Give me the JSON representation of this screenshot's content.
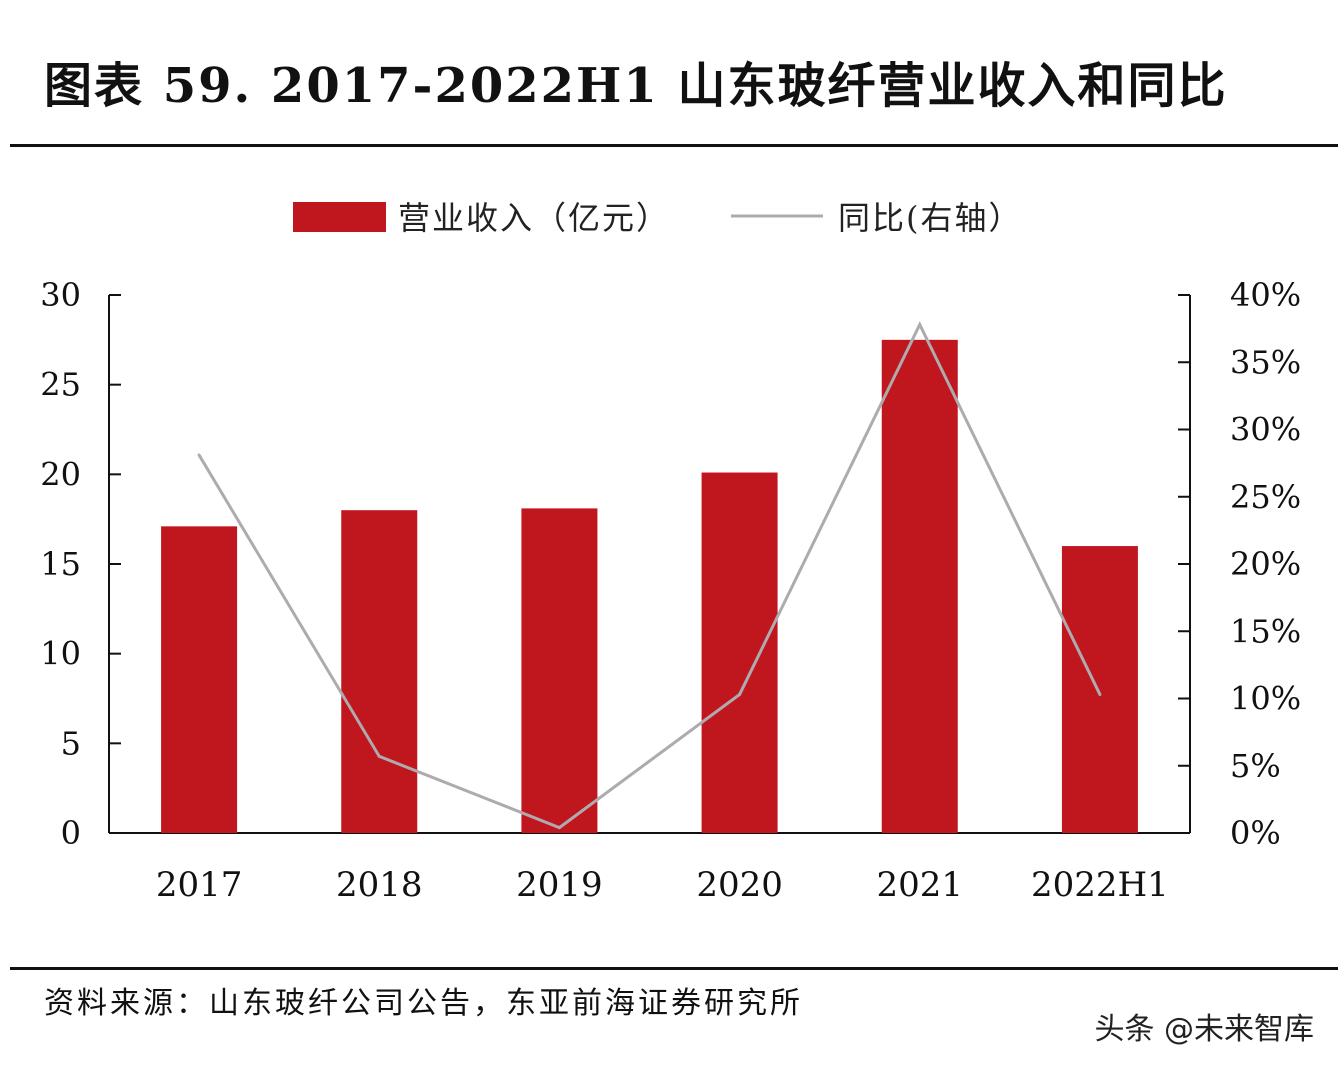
{
  "title": "图表 59. 2017-2022H1 山东玻纤营业收入和同比",
  "source": "资料来源：山东玻纤公司公告，东亚前海证券研究所",
  "watermark": "头条 @未来智库",
  "colors": {
    "bar": "#C0161E",
    "line": "#AEAAAD",
    "axis": "#111111"
  },
  "chart_data": {
    "type": "bar",
    "categories": [
      "2017",
      "2018",
      "2019",
      "2020",
      "2021",
      "2022H1"
    ],
    "series": [
      {
        "name": "营业收入（亿元）",
        "type": "bar",
        "axis": "left",
        "values": [
          17.1,
          18.0,
          18.1,
          20.1,
          27.5,
          16.0
        ]
      },
      {
        "name": "同比(右轴）",
        "type": "line",
        "axis": "right",
        "values": [
          28.1,
          5.7,
          0.4,
          10.3,
          37.8,
          10.3
        ]
      }
    ],
    "y_left": {
      "min": 0,
      "max": 30,
      "ticks": [
        "0",
        "5",
        "10",
        "15",
        "20",
        "25",
        "30"
      ]
    },
    "y_right": {
      "min": 0,
      "max": 40,
      "ticks": [
        "0%",
        "5%",
        "10%",
        "15%",
        "20%",
        "25%",
        "30%",
        "35%",
        "40%"
      ]
    },
    "legend_position": "top-center",
    "grid": false
  }
}
